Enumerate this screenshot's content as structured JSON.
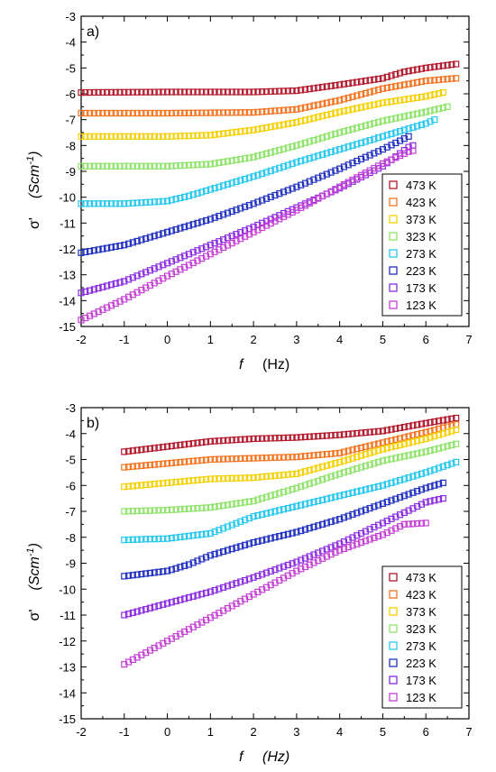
{
  "chart_data": [
    {
      "type": "scatter",
      "panel_label": "a)",
      "xlabel_symbol": "f",
      "xlabel_unit": "(Hz)",
      "ylabel_symbol": "σ'",
      "ylabel_unit_prefix": "(Scm",
      "ylabel_unit_exp": "-1",
      "ylabel_unit_suffix": ")",
      "xlim": [
        -2,
        7
      ],
      "ylim": [
        -15,
        -3
      ],
      "x_ticks": [
        "-2",
        "-1",
        "0",
        "1",
        "2",
        "3",
        "4",
        "5",
        "6",
        "7"
      ],
      "y_ticks": [
        "-15",
        "-14",
        "-13",
        "-12",
        "-11",
        "-10",
        "-9",
        "-8",
        "-7",
        "-6",
        "-5",
        "-4",
        "-3"
      ],
      "grid": false,
      "legend_position": "bottom-right",
      "series": [
        {
          "name": "473 K",
          "color": "#b2182b",
          "x_start": -2,
          "x_end": 6.7,
          "curve": [
            [
              -2,
              -5.95
            ],
            [
              0,
              -5.93
            ],
            [
              2,
              -5.93
            ],
            [
              3,
              -5.88
            ],
            [
              4,
              -5.65
            ],
            [
              5,
              -5.4
            ],
            [
              5.5,
              -5.15
            ],
            [
              6,
              -5.0
            ],
            [
              6.7,
              -4.85
            ]
          ]
        },
        {
          "name": "423 K",
          "color": "#f4731f",
          "x_start": -2,
          "x_end": 6.7,
          "curve": [
            [
              -2,
              -6.75
            ],
            [
              0,
              -6.75
            ],
            [
              2,
              -6.72
            ],
            [
              3,
              -6.6
            ],
            [
              4,
              -6.25
            ],
            [
              5,
              -5.8
            ],
            [
              6,
              -5.5
            ],
            [
              6.7,
              -5.4
            ]
          ]
        },
        {
          "name": "373 K",
          "color": "#f4d000",
          "x_start": -2,
          "x_end": 6.4,
          "curve": [
            [
              -2,
              -7.65
            ],
            [
              0,
              -7.65
            ],
            [
              1,
              -7.6
            ],
            [
              2,
              -7.4
            ],
            [
              3,
              -7.1
            ],
            [
              4,
              -6.7
            ],
            [
              5,
              -6.35
            ],
            [
              6,
              -6.1
            ],
            [
              6.4,
              -5.95
            ]
          ]
        },
        {
          "name": "323 K",
          "color": "#8ee36a",
          "x_start": -2,
          "x_end": 6.5,
          "curve": [
            [
              -2,
              -8.8
            ],
            [
              0,
              -8.8
            ],
            [
              1,
              -8.72
            ],
            [
              2,
              -8.45
            ],
            [
              3,
              -8.0
            ],
            [
              4,
              -7.5
            ],
            [
              5,
              -7.05
            ],
            [
              6,
              -6.7
            ],
            [
              6.5,
              -6.5
            ]
          ]
        },
        {
          "name": "273 K",
          "color": "#25c7ef",
          "x_start": -2,
          "x_end": 6.2,
          "curve": [
            [
              -2,
              -10.25
            ],
            [
              -1,
              -10.25
            ],
            [
              0,
              -10.15
            ],
            [
              0.5,
              -9.95
            ],
            [
              1,
              -9.7
            ],
            [
              2,
              -9.2
            ],
            [
              3,
              -8.65
            ],
            [
              4,
              -8.15
            ],
            [
              5,
              -7.65
            ],
            [
              6,
              -7.15
            ],
            [
              6.2,
              -7.0
            ]
          ]
        },
        {
          "name": "223 K",
          "color": "#1f2fbf",
          "x_start": -2,
          "x_end": 5.6,
          "curve": [
            [
              -2,
              -12.15
            ],
            [
              -1,
              -11.85
            ],
            [
              0,
              -11.35
            ],
            [
              1,
              -10.85
            ],
            [
              2,
              -10.25
            ],
            [
              3,
              -9.6
            ],
            [
              4,
              -8.9
            ],
            [
              5,
              -8.15
            ],
            [
              5.6,
              -7.65
            ]
          ]
        },
        {
          "name": "173 K",
          "color": "#8a2be2",
          "x_start": -2,
          "x_end": 5.65,
          "curve": [
            [
              -2,
              -13.7
            ],
            [
              -1,
              -13.25
            ],
            [
              0,
              -12.55
            ],
            [
              1,
              -11.85
            ],
            [
              2,
              -11.15
            ],
            [
              3,
              -10.4
            ],
            [
              4,
              -9.65
            ],
            [
              5,
              -8.8
            ],
            [
              5.65,
              -8.0
            ]
          ]
        },
        {
          "name": "123 K",
          "color": "#c43fd4",
          "x_start": -2,
          "x_end": 5.65,
          "curve": [
            [
              -2,
              -14.75
            ],
            [
              -1,
              -13.95
            ],
            [
              0,
              -13.05
            ],
            [
              1,
              -12.2
            ],
            [
              2,
              -11.35
            ],
            [
              3,
              -10.5
            ],
            [
              4,
              -9.6
            ],
            [
              5,
              -8.7
            ],
            [
              5.65,
              -8.2
            ]
          ]
        }
      ]
    },
    {
      "type": "scatter",
      "panel_label": "b)",
      "xlabel_symbol": "f",
      "xlabel_unit": "(Hz)",
      "ylabel_symbol": "σ'",
      "ylabel_unit_prefix": "(Scm",
      "ylabel_unit_exp": "-1",
      "ylabel_unit_suffix": ")",
      "xlim": [
        -2,
        7
      ],
      "ylim": [
        -15,
        -3
      ],
      "x_ticks": [
        "-2",
        "-1",
        "0",
        "1",
        "2",
        "3",
        "4",
        "5",
        "6",
        "7"
      ],
      "y_ticks": [
        "-15",
        "-14",
        "-13",
        "-12",
        "-11",
        "-10",
        "-9",
        "-8",
        "-7",
        "-6",
        "-5",
        "-4",
        "-3"
      ],
      "grid": false,
      "legend_position": "bottom-right",
      "series": [
        {
          "name": "473 K",
          "color": "#b2182b",
          "x_start": -1,
          "x_end": 6.7,
          "curve": [
            [
              -1,
              -4.7
            ],
            [
              0,
              -4.5
            ],
            [
              1,
              -4.3
            ],
            [
              2,
              -4.2
            ],
            [
              3,
              -4.15
            ],
            [
              4,
              -4.05
            ],
            [
              5,
              -3.9
            ],
            [
              6,
              -3.6
            ],
            [
              6.7,
              -3.4
            ]
          ]
        },
        {
          "name": "423 K",
          "color": "#f4731f",
          "x_start": -1,
          "x_end": 6.7,
          "curve": [
            [
              -1,
              -5.3
            ],
            [
              0,
              -5.15
            ],
            [
              1,
              -5.0
            ],
            [
              2,
              -4.95
            ],
            [
              3,
              -4.9
            ],
            [
              4,
              -4.75
            ],
            [
              5,
              -4.35
            ],
            [
              6,
              -3.95
            ],
            [
              6.7,
              -3.65
            ]
          ]
        },
        {
          "name": "373 K",
          "color": "#f4d000",
          "x_start": -1,
          "x_end": 6.7,
          "curve": [
            [
              -1,
              -6.05
            ],
            [
              0,
              -5.9
            ],
            [
              1,
              -5.75
            ],
            [
              2,
              -5.7
            ],
            [
              3,
              -5.55
            ],
            [
              4,
              -5.1
            ],
            [
              5,
              -4.6
            ],
            [
              6,
              -4.2
            ],
            [
              6.7,
              -3.85
            ]
          ]
        },
        {
          "name": "323 K",
          "color": "#8ee36a",
          "x_start": -1,
          "x_end": 6.7,
          "curve": [
            [
              -1,
              -7.0
            ],
            [
              0,
              -6.95
            ],
            [
              1,
              -6.85
            ],
            [
              2,
              -6.6
            ],
            [
              3,
              -6.1
            ],
            [
              4,
              -5.55
            ],
            [
              5,
              -5.05
            ],
            [
              6,
              -4.7
            ],
            [
              6.7,
              -4.4
            ]
          ]
        },
        {
          "name": "273 K",
          "color": "#25c7ef",
          "x_start": -1,
          "x_end": 6.7,
          "curve": [
            [
              -1,
              -8.1
            ],
            [
              0,
              -8.05
            ],
            [
              1,
              -7.85
            ],
            [
              2,
              -7.2
            ],
            [
              3,
              -6.8
            ],
            [
              4,
              -6.4
            ],
            [
              5,
              -6.0
            ],
            [
              6,
              -5.5
            ],
            [
              6.7,
              -5.1
            ]
          ]
        },
        {
          "name": "223 K",
          "color": "#1f2fbf",
          "x_start": -1,
          "x_end": 6.4,
          "curve": [
            [
              -1,
              -9.5
            ],
            [
              0,
              -9.3
            ],
            [
              0.5,
              -9.05
            ],
            [
              1,
              -8.7
            ],
            [
              2,
              -8.2
            ],
            [
              3,
              -7.8
            ],
            [
              4,
              -7.3
            ],
            [
              5,
              -6.7
            ],
            [
              6,
              -6.1
            ],
            [
              6.4,
              -5.9
            ]
          ]
        },
        {
          "name": "173 K",
          "color": "#8a2be2",
          "x_start": -1,
          "x_end": 6.4,
          "curve": [
            [
              -1,
              -11.0
            ],
            [
              0,
              -10.55
            ],
            [
              1,
              -10.1
            ],
            [
              2,
              -9.55
            ],
            [
              3,
              -8.95
            ],
            [
              4,
              -8.25
            ],
            [
              5,
              -7.45
            ],
            [
              6,
              -6.65
            ],
            [
              6.4,
              -6.5
            ]
          ]
        },
        {
          "name": "123 K",
          "color": "#c43fd4",
          "x_start": -1,
          "x_end": 6.0,
          "curve": [
            [
              -1,
              -12.9
            ],
            [
              0,
              -12.0
            ],
            [
              1,
              -11.1
            ],
            [
              2,
              -10.2
            ],
            [
              3,
              -9.3
            ],
            [
              4,
              -8.5
            ],
            [
              5,
              -7.9
            ],
            [
              5.5,
              -7.5
            ],
            [
              6,
              -7.45
            ]
          ]
        }
      ]
    }
  ]
}
